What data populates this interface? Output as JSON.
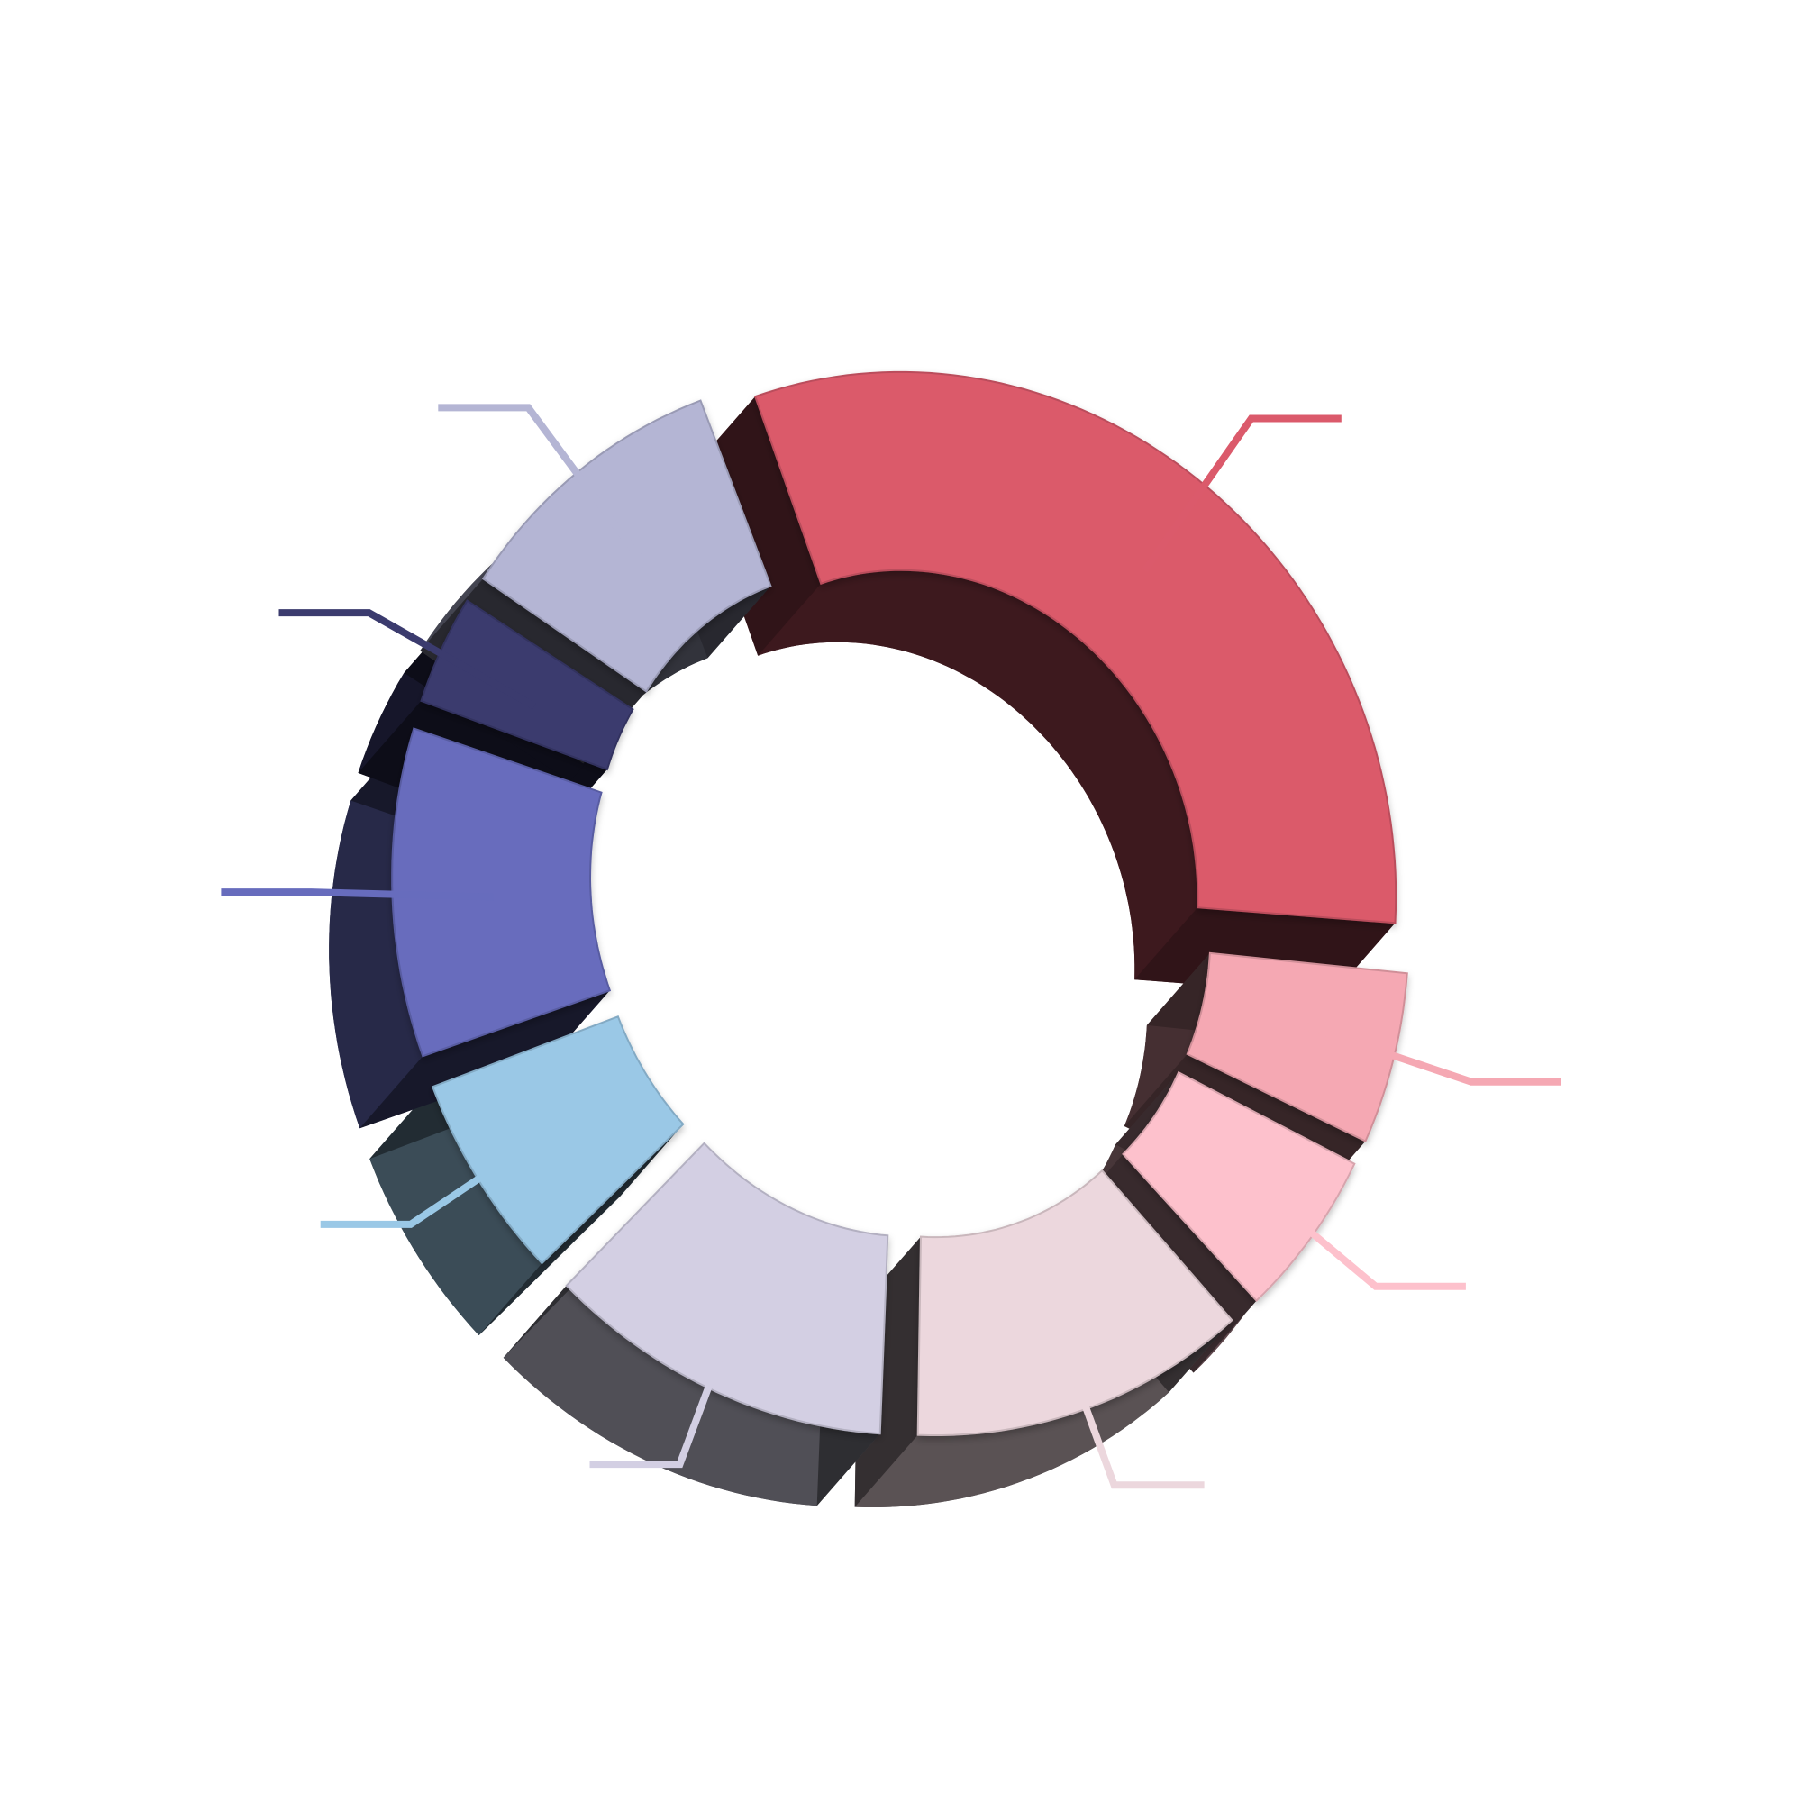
{
  "chart_data": {
    "type": "donut",
    "style": "3d-exploded",
    "title": "",
    "legend": "none",
    "leader_lines": true,
    "start_direction": "top",
    "rotation": "clockwise",
    "slices": [
      {
        "value": 32,
        "color": "#db5a6b"
      },
      {
        "value": 6,
        "color": "#f5a8b3"
      },
      {
        "value": 6,
        "color": "#fdc1cc"
      },
      {
        "value": 12,
        "color": "#ecd7dd"
      },
      {
        "value": 12,
        "color": "#d3cfe3"
      },
      {
        "value": 7,
        "color": "#9ac8e6"
      },
      {
        "value": 11,
        "color": "#676cbd"
      },
      {
        "value": 4,
        "color": "#3b3b6e"
      },
      {
        "value": 10,
        "color": "#b4b5d4"
      }
    ]
  }
}
